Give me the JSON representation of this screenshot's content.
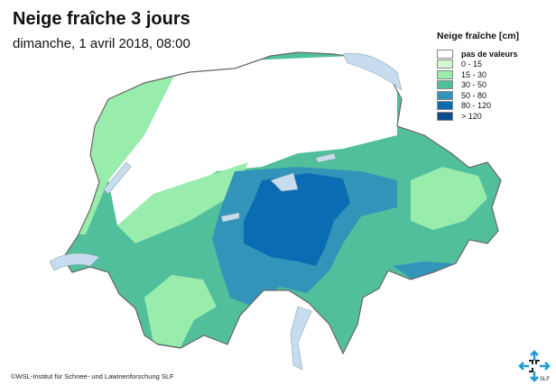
{
  "title": "Neige fraîche 3 jours",
  "subtitle": "dimanche, 1 avril 2018, 08:00",
  "legend": {
    "title": "Neige fraîche [cm]",
    "items": [
      {
        "label": "pas de valeurs",
        "color": "#ffffff"
      },
      {
        "label": "0 - 15",
        "color": "#d2f8d2"
      },
      {
        "label": "15 - 30",
        "color": "#98ecac"
      },
      {
        "label": "30 - 50",
        "color": "#52bf9c"
      },
      {
        "label": "50 - 80",
        "color": "#3394ba"
      },
      {
        "label": "80 - 120",
        "color": "#0a6cb2"
      },
      {
        "label": "> 120",
        "color": "#0a4c8c"
      }
    ]
  },
  "copyright": "©WSL-Institut für Schnee- und Lawinenforschung SLF",
  "logo": {
    "text": "SLF",
    "icon": "snowflake-icon"
  },
  "lake_color": "#c8dcf0"
}
